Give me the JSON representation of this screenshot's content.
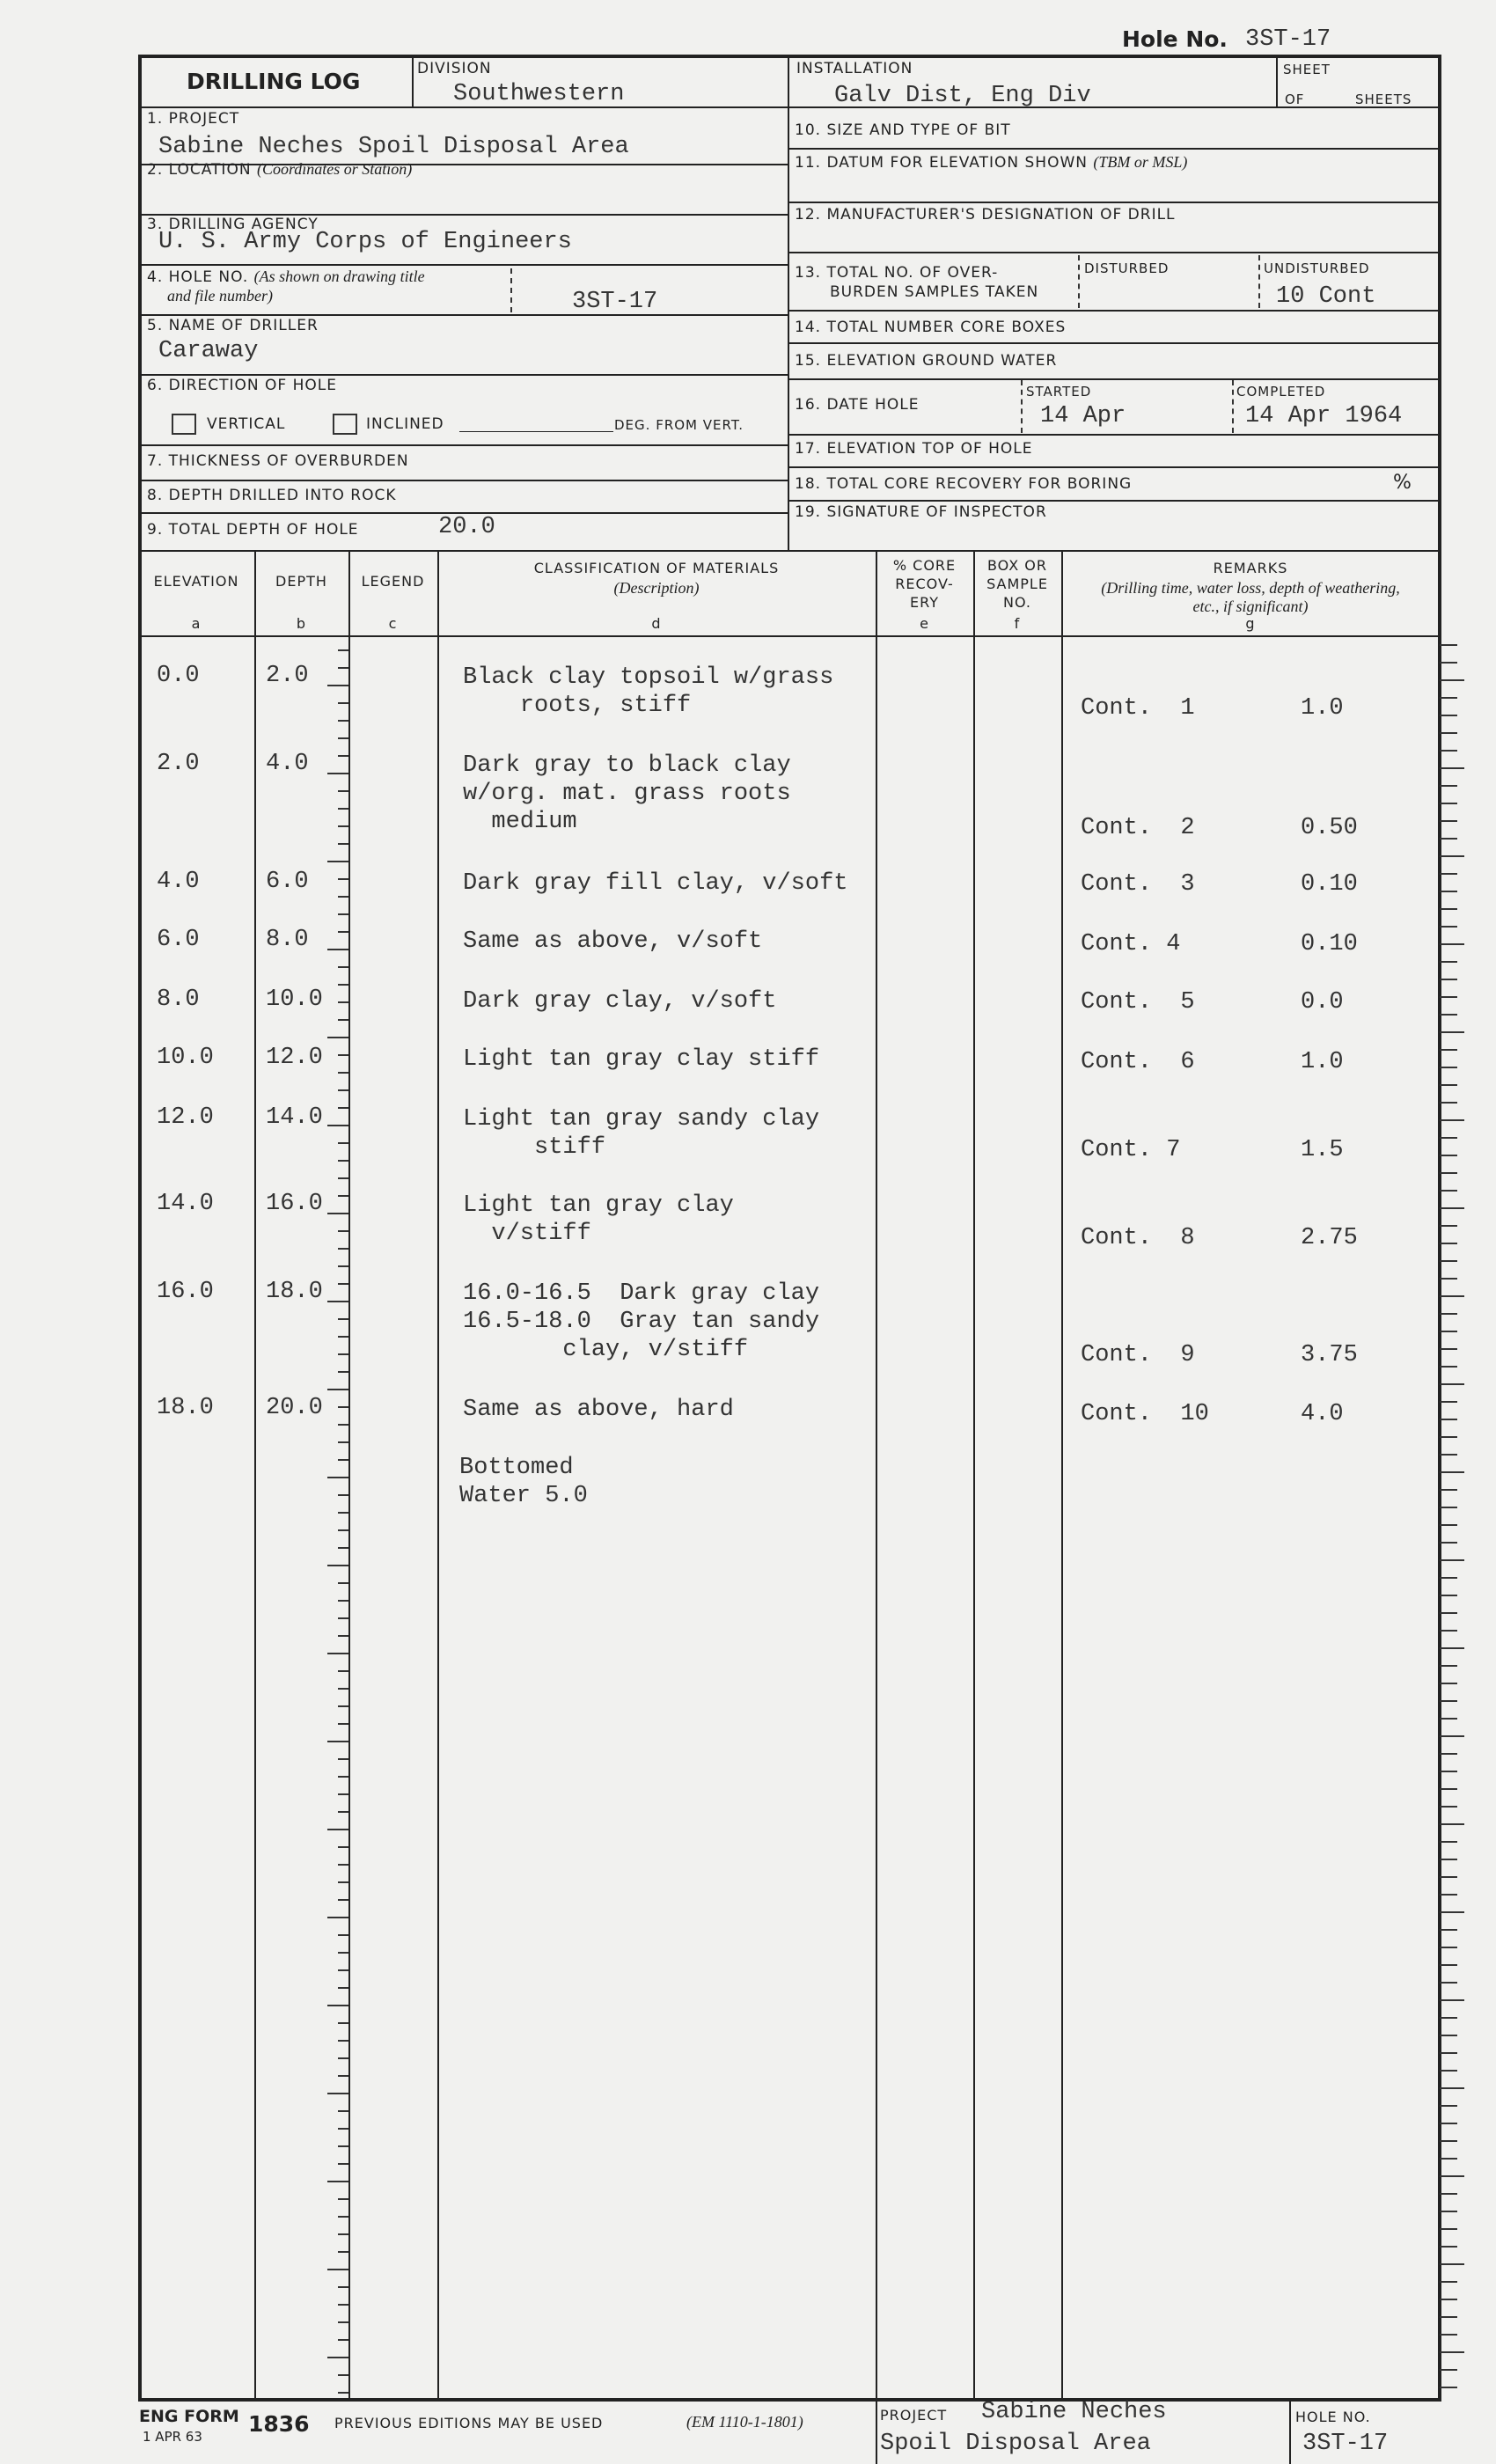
{
  "header": {
    "hole_no_label": "Hole No.",
    "hole_no_value": "3ST-17"
  },
  "form": {
    "title": "DRILLING LOG",
    "division_label": "DIVISION",
    "division_value": "Southwestern",
    "installation_label": "INSTALLATION",
    "installation_value": "Galv Dist, Eng Div",
    "sheet_label": "SHEET",
    "of_label": "OF",
    "sheets_label": "SHEETS",
    "project_label": "1. PROJECT",
    "project_value": "Sabine Neches Spoil Disposal Area",
    "location_label": "2. LOCATION",
    "location_hint": "(Coordinates or Station)",
    "agency_label": "3. DRILLING AGENCY",
    "agency_value": "U. S. Army Corps of Engineers",
    "hole_label": "4. HOLE NO.",
    "hole_hint1": "(As shown on drawing title",
    "hole_hint2": "and file number)",
    "hole_value": "3ST-17",
    "driller_label": "5. NAME OF DRILLER",
    "driller_value": "Caraway",
    "direction_label": "6. DIRECTION OF HOLE",
    "vertical_label": "VERTICAL",
    "inclined_label": "INCLINED",
    "deg_label": "DEG. FROM VERT.",
    "overburden_label": "7. THICKNESS OF OVERBURDEN",
    "rock_label": "8. DEPTH DRILLED INTO ROCK",
    "total_depth_label": "9. TOTAL DEPTH OF HOLE",
    "total_depth_value": "20.0",
    "bit_label": "10. SIZE AND TYPE OF BIT",
    "datum_label": "11. DATUM FOR ELEVATION SHOWN",
    "datum_hint": "(TBM or MSL)",
    "mfr_label": "12. MANUFACTURER'S DESIGNATION OF DRILL",
    "samples_label1": "13. TOTAL NO. OF OVER-",
    "samples_label2": "BURDEN SAMPLES TAKEN",
    "disturbed_label": "DISTURBED",
    "undisturbed_label": "UNDISTURBED",
    "undisturbed_value": "10 Cont",
    "core_boxes_label": "14. TOTAL NUMBER CORE BOXES",
    "ground_water_label": "15. ELEVATION GROUND WATER",
    "date_label": "16. DATE HOLE",
    "started_label": "STARTED",
    "started_value": "14 Apr",
    "completed_label": "COMPLETED",
    "completed_value": "14 Apr 1964",
    "elev_top_label": "17. ELEVATION TOP OF HOLE",
    "core_recovery_label": "18. TOTAL CORE RECOVERY FOR BORING",
    "percent": "%",
    "signature_label": "19. SIGNATURE OF INSPECTOR"
  },
  "columns": [
    {
      "title": "ELEVATION",
      "sub": "",
      "letter": "a"
    },
    {
      "title": "DEPTH",
      "sub": "",
      "letter": "b"
    },
    {
      "title": "LEGEND",
      "sub": "",
      "letter": "c"
    },
    {
      "title": "CLASSIFICATION OF MATERIALS",
      "sub": "(Description)",
      "letter": "d"
    },
    {
      "title": "% CORE RECOV- ERY",
      "sub": "",
      "letter": "e"
    },
    {
      "title": "BOX OR SAMPLE NO.",
      "sub": "",
      "letter": "f"
    },
    {
      "title": "REMARKS",
      "sub": "(Drilling time, water loss, depth of weathering, etc., if significant)",
      "letter": "g"
    }
  ],
  "rows": [
    {
      "elevation": "0.0",
      "depth": "2.0",
      "description": [
        "Black clay topsoil w/grass",
        "    roots, stiff"
      ],
      "remark_cont": "Cont.  1",
      "remark_value": "1.0"
    },
    {
      "elevation": "2.0",
      "depth": "4.0",
      "description": [
        "Dark gray to black clay",
        "w/org. mat. grass roots",
        "  medium"
      ],
      "remark_cont": "Cont.  2",
      "remark_value": "0.50"
    },
    {
      "elevation": "4.0",
      "depth": "6.0",
      "description": [
        "Dark gray fill clay, v/soft"
      ],
      "remark_cont": "Cont.  3",
      "remark_value": "0.10"
    },
    {
      "elevation": "6.0",
      "depth": "8.0",
      "description": [
        "Same as above, v/soft"
      ],
      "remark_cont": "Cont. 4",
      "remark_value": "0.10"
    },
    {
      "elevation": "8.0",
      "depth": "10.0",
      "description": [
        "Dark gray clay, v/soft"
      ],
      "remark_cont": "Cont.  5",
      "remark_value": "0.0"
    },
    {
      "elevation": "10.0",
      "depth": "12.0",
      "description": [
        "Light tan gray clay stiff"
      ],
      "remark_cont": "Cont.  6",
      "remark_value": "1.0"
    },
    {
      "elevation": "12.0",
      "depth": "14.0",
      "description": [
        "Light tan gray sandy clay",
        "     stiff"
      ],
      "remark_cont": "Cont. 7",
      "remark_value": "1.5"
    },
    {
      "elevation": "14.0",
      "depth": "16.0",
      "description": [
        "Light tan gray clay",
        "  v/stiff"
      ],
      "remark_cont": "Cont.  8",
      "remark_value": "2.75"
    },
    {
      "elevation": "16.0",
      "depth": "18.0",
      "description": [
        "16.0-16.5  Dark gray clay",
        "16.5-18.0  Gray tan sandy",
        "       clay, v/stiff"
      ],
      "remark_cont": "Cont.  9",
      "remark_value": "3.75"
    },
    {
      "elevation": "18.0",
      "depth": "20.0",
      "description": [
        "Same as above, hard"
      ],
      "remark_cont": "Cont.  10",
      "remark_value": "4.0"
    }
  ],
  "bottom_note": [
    "Bottomed",
    "Water 5.0"
  ],
  "footer": {
    "eng_form": "ENG FORM",
    "date": "1 APR 63",
    "number": "1836",
    "previous": "PREVIOUS EDITIONS MAY BE USED",
    "em": "(EM 1110-1-1801)",
    "project_label": "PROJECT",
    "project_line1": "Sabine Neches",
    "project_line2": "Spoil Disposal Area",
    "hole_label": "HOLE NO.",
    "hole_value": "3ST-17"
  }
}
